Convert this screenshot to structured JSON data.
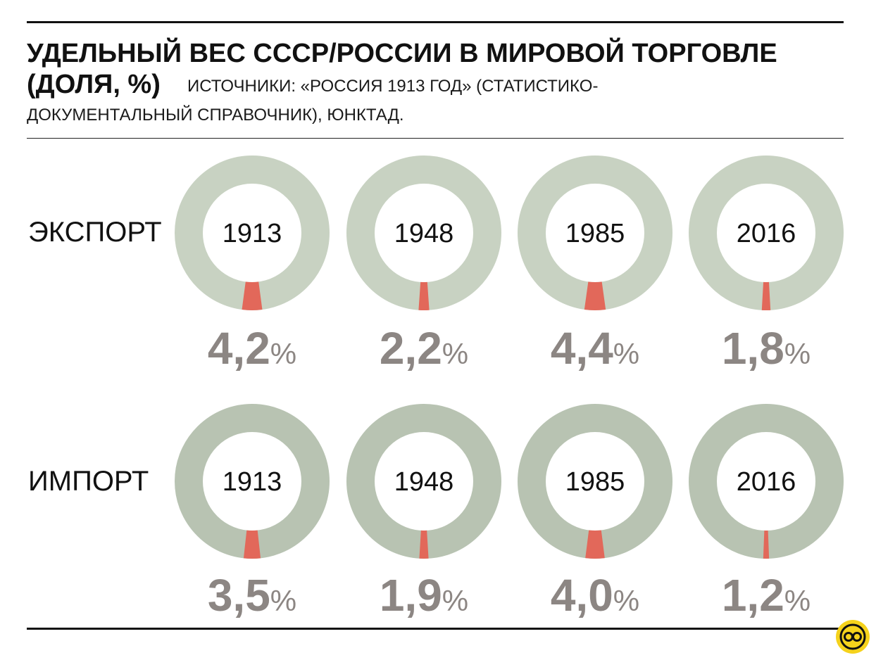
{
  "title": {
    "line1": "УДЕЛЬНЫЙ ВЕС СССР/РОССИИ В МИРОВОЙ ТОРГОВЛЕ",
    "line2": "(ДОЛЯ, %)"
  },
  "source": {
    "line1": "ИСТОЧНИКИ: «РОССИЯ 1913 ГОД» (СТАТИСТИКО-",
    "line2": "ДОКУМЕНТАЛЬНЫЙ СПРАВОЧНИК), ЮНКТАД."
  },
  "colors": {
    "export_ring": "#c8d2c2",
    "import_ring": "#b8c3b2",
    "share_wedge": "#e2685a",
    "value_text": "#8c8683",
    "logo_bg": "#f5d21c"
  },
  "chart_data": {
    "type": "donut",
    "categories": [
      "1913",
      "1948",
      "1985",
      "2016"
    ],
    "unit": "%",
    "series": [
      {
        "name": "ЭКСПОРТ",
        "values": [
          4.2,
          2.2,
          4.4,
          1.8
        ],
        "labels": [
          "4,2",
          "2,2",
          "4,4",
          "1,8"
        ]
      },
      {
        "name": "ИМПОРТ",
        "values": [
          3.5,
          1.9,
          4.0,
          1.2
        ],
        "labels": [
          "3,5",
          "1,9",
          "4,0",
          "1,2"
        ]
      }
    ]
  }
}
